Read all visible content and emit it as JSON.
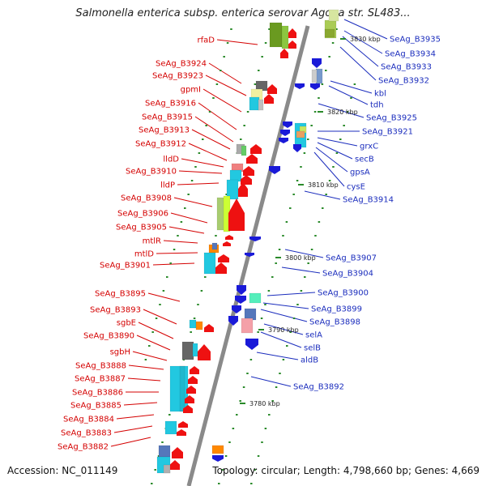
{
  "title": "Salmonella enterica subsp. enterica serovar Agona str. SL483...",
  "footer": {
    "accession": "Accession: NC_011149",
    "summary": "Topology: circular; Length: 4,798,660 bp; Genes: 4,669"
  },
  "colors": {
    "left_labels": "#d40000",
    "right_labels": "#1b2dbd",
    "backbone": "#888888",
    "ticks": "#2a8a2a"
  },
  "left_genes": [
    "rfaD",
    "SeAg_B3924",
    "SeAg_B3923",
    "gpmI",
    "SeAg_B3916",
    "SeAg_B3915",
    "SeAg_B3913",
    "SeAg_B3912",
    "lldD",
    "SeAg_B3910",
    "lldP",
    "SeAg_B3908",
    "SeAg_B3906",
    "SeAg_B3905",
    "mtlR",
    "mtlD",
    "SeAg_B3901",
    "SeAg_B3895",
    "SeAg_B3893",
    "sgbE",
    "SeAg_B3890",
    "sgbH",
    "SeAg_B3888",
    "SeAg_B3887",
    "SeAg_B3886",
    "SeAg_B3885",
    "SeAg_B3884",
    "SeAg_B3883",
    "SeAg_B3882"
  ],
  "right_genes": [
    "SeAg_B3935",
    "SeAg_B3934",
    "SeAg_B3933",
    "SeAg_B3932",
    "kbl",
    "tdh",
    "SeAg_B3925",
    "SeAg_B3921",
    "grxC",
    "secB",
    "gpsA",
    "cysE",
    "SeAg_B3914",
    "SeAg_B3907",
    "SeAg_B3904",
    "SeAg_B3900",
    "SeAg_B3899",
    "SeAg_B3898",
    "selA",
    "selB",
    "aldB",
    "SeAg_B3892"
  ],
  "kbp_ticks": [
    "3830 kbp",
    "3820 kbp",
    "3810 kbp",
    "3800 kbp",
    "3790 kbp",
    "3780 kbp"
  ]
}
